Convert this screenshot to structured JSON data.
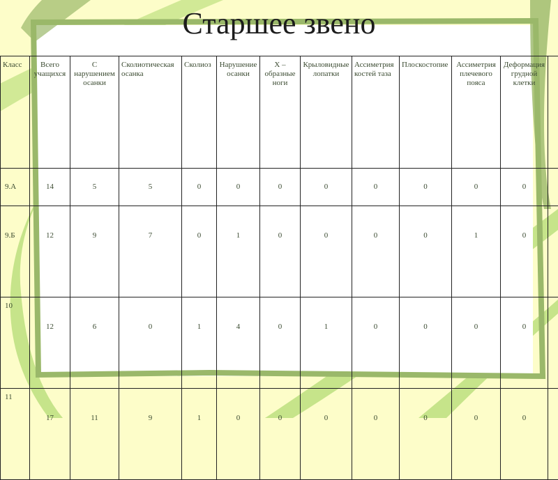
{
  "title": "Старшее звено",
  "colors": {
    "background": "#fdfdc9",
    "frame_dark_green": "#9ab86a",
    "frame_light_green": "#c6e48a"
  },
  "table": {
    "headers": [
      "Класс",
      "Всего учащихся",
      "С нарушением осанки",
      "Сколиотическая осанка",
      "Сколиоз",
      "Нарушение осанки",
      "Х – образные ноги",
      "Крыловидные лопатки",
      "Ассиметрия костей таза",
      "Плоскостопие",
      "Ассиметрия плечевого пояса",
      "Деформация грудной клетки",
      ""
    ],
    "rows": [
      [
        "9.А",
        "14",
        "5",
        "5",
        "0",
        "0",
        "0",
        "0",
        "0",
        "0",
        "0",
        "0",
        ""
      ],
      [
        "9.Б",
        "12",
        "9",
        "7",
        "0",
        "1",
        "0",
        "0",
        "0",
        "0",
        "1",
        "0",
        ""
      ],
      [
        "10",
        "12",
        "6",
        "0",
        "1",
        "4",
        "0",
        "1",
        "0",
        "0",
        "0",
        "0",
        ""
      ],
      [
        "11",
        "17",
        "11",
        "9",
        "1",
        "0",
        "0",
        "0",
        "0",
        "0",
        "0",
        "0",
        ""
      ]
    ]
  }
}
